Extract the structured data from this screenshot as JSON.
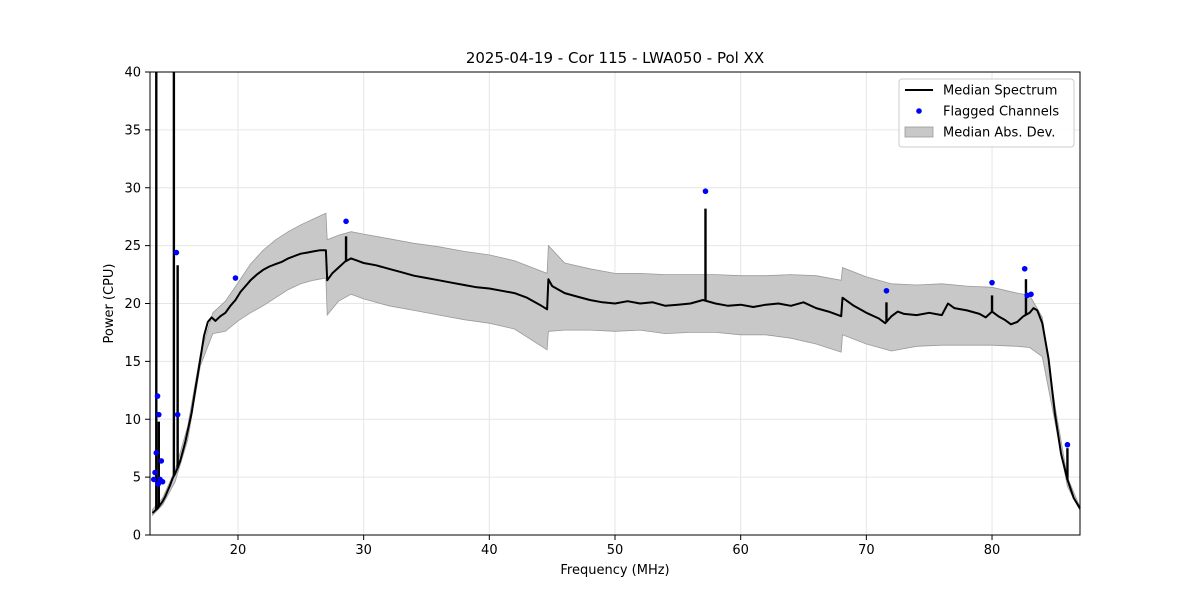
{
  "chart_data": {
    "type": "line",
    "title": "2025-04-19 - Cor 115 - LWA050 - Pol XX",
    "xlabel": "Frequency (MHz)",
    "ylabel": "Power (CPU)",
    "xlim": [
      13.0,
      87.0
    ],
    "ylim": [
      0,
      40
    ],
    "xticks": [
      20,
      30,
      40,
      50,
      60,
      70,
      80
    ],
    "yticks": [
      0,
      5,
      10,
      15,
      20,
      25,
      30,
      35,
      40
    ],
    "grid": true,
    "legend_position": "top-right",
    "colors": {
      "median": "#000000",
      "flagged": "#0000ff",
      "band_fill": "#c8c8c8",
      "band_edge": "#9a9a9a"
    },
    "legend": [
      {
        "label": "Median Spectrum",
        "kind": "line"
      },
      {
        "label": "Flagged Channels",
        "kind": "dot"
      },
      {
        "label": "Median Abs. Dev.",
        "kind": "patch"
      }
    ],
    "series": [
      {
        "name": "Median Spectrum",
        "x": [
          13.2,
          13.4,
          13.6,
          13.8,
          14.0,
          14.2,
          14.4,
          14.6,
          14.8,
          15.0,
          15.2,
          15.4,
          15.6,
          15.8,
          16.0,
          16.3,
          16.6,
          17.0,
          17.3,
          17.6,
          17.9,
          18.2,
          18.6,
          19.0,
          19.4,
          19.8,
          20.2,
          20.6,
          21.0,
          21.5,
          22.0,
          22.5,
          23.0,
          23.5,
          24.0,
          24.5,
          25.0,
          25.5,
          26.0,
          26.5,
          27.0,
          27.1,
          27.5,
          28.0,
          28.5,
          29.0,
          29.5,
          30.0,
          31.0,
          32.0,
          33.0,
          34.0,
          35.0,
          36.0,
          37.0,
          38.0,
          39.0,
          40.0,
          41.0,
          42.0,
          43.0,
          44.0,
          44.6,
          44.7,
          45.0,
          46.0,
          47.0,
          48.0,
          49.0,
          50.0,
          51.0,
          52.0,
          53.0,
          54.0,
          55.0,
          56.0,
          57.0,
          58.0,
          59.0,
          60.0,
          61.0,
          62.0,
          63.0,
          64.0,
          65.0,
          66.0,
          67.0,
          68.0,
          68.1,
          69.0,
          70.0,
          71.0,
          71.5,
          72.0,
          72.5,
          73.0,
          74.0,
          75.0,
          76.0,
          76.5,
          77.0,
          78.0,
          79.0,
          79.5,
          80.0,
          80.5,
          81.0,
          81.5,
          82.0,
          82.5,
          83.0,
          83.3,
          83.6,
          84.0,
          84.5,
          85.0,
          85.5,
          86.0,
          86.5,
          87.0
        ],
        "values": [
          1.9,
          2.1,
          2.3,
          2.6,
          2.9,
          3.3,
          3.8,
          4.3,
          4.9,
          5.3,
          5.8,
          6.4,
          7.2,
          8.0,
          9.0,
          10.5,
          12.5,
          15.2,
          17.2,
          18.4,
          18.8,
          18.5,
          18.9,
          19.2,
          19.8,
          20.3,
          21.0,
          21.5,
          22.0,
          22.5,
          22.9,
          23.2,
          23.4,
          23.6,
          23.9,
          24.1,
          24.3,
          24.4,
          24.5,
          24.6,
          24.6,
          22.0,
          22.6,
          23.1,
          23.6,
          23.9,
          23.7,
          23.5,
          23.3,
          23.0,
          22.7,
          22.4,
          22.2,
          22.0,
          21.8,
          21.6,
          21.4,
          21.3,
          21.1,
          20.9,
          20.5,
          19.9,
          19.5,
          22.1,
          21.5,
          20.9,
          20.6,
          20.3,
          20.1,
          20.0,
          20.2,
          20.0,
          20.1,
          19.8,
          19.9,
          20.0,
          20.3,
          20.0,
          19.8,
          19.9,
          19.7,
          19.9,
          20.0,
          19.8,
          20.1,
          19.6,
          19.3,
          18.9,
          20.5,
          19.8,
          19.2,
          18.7,
          18.3,
          18.9,
          19.3,
          19.1,
          19.0,
          19.2,
          19.0,
          20.0,
          19.6,
          19.4,
          19.1,
          18.8,
          19.3,
          18.9,
          18.6,
          18.2,
          18.4,
          18.9,
          19.2,
          19.6,
          19.4,
          18.3,
          15.2,
          10.5,
          7.0,
          4.8,
          3.2,
          2.3
        ],
        "spikes": [
          {
            "x": 13.5,
            "value": 40.0
          },
          {
            "x": 13.7,
            "value": 9.8
          },
          {
            "x": 14.9,
            "value": 40.0
          },
          {
            "x": 15.2,
            "value": 23.3
          },
          {
            "x": 28.6,
            "value": 25.8
          },
          {
            "x": 57.2,
            "value": 28.2
          },
          {
            "x": 71.6,
            "value": 20.1
          },
          {
            "x": 80.0,
            "value": 20.7
          },
          {
            "x": 82.7,
            "value": 22.1
          },
          {
            "x": 86.0,
            "value": 7.5
          }
        ]
      },
      {
        "name": "Median Abs. Dev.",
        "x": [
          13.2,
          14.0,
          15.0,
          16.0,
          17.0,
          18.0,
          19.0,
          20.0,
          21.0,
          22.0,
          23.0,
          24.0,
          25.0,
          26.0,
          27.0,
          27.1,
          28.0,
          29.0,
          30.0,
          32.0,
          34.0,
          36.0,
          38.0,
          40.0,
          42.0,
          44.6,
          44.7,
          46.0,
          48.0,
          50.0,
          52.0,
          54.0,
          56.0,
          58.0,
          60.0,
          62.0,
          64.0,
          66.0,
          68.0,
          68.1,
          70.0,
          72.0,
          74.0,
          76.0,
          78.0,
          80.0,
          82.0,
          83.0,
          84.0,
          85.0,
          86.0,
          87.0
        ],
        "upper": [
          2.2,
          3.2,
          5.6,
          9.4,
          15.6,
          19.2,
          20.2,
          21.8,
          23.4,
          24.6,
          25.5,
          26.2,
          26.8,
          27.3,
          27.8,
          25.5,
          25.9,
          26.2,
          26.0,
          25.6,
          25.2,
          24.9,
          24.5,
          24.2,
          23.7,
          22.6,
          25.0,
          23.5,
          23.0,
          22.6,
          22.6,
          22.5,
          22.5,
          22.5,
          22.4,
          22.4,
          22.5,
          22.4,
          22.0,
          23.1,
          22.3,
          21.7,
          21.6,
          21.7,
          21.5,
          21.4,
          20.9,
          20.7,
          18.8,
          11.2,
          5.0,
          2.4
        ],
        "lower": [
          1.7,
          2.6,
          4.6,
          8.2,
          14.6,
          17.4,
          17.6,
          18.5,
          19.2,
          19.8,
          20.5,
          21.2,
          21.7,
          22.0,
          22.2,
          19.0,
          20.2,
          20.8,
          20.4,
          19.8,
          19.4,
          19.0,
          18.6,
          18.3,
          17.8,
          16.0,
          17.6,
          17.7,
          17.7,
          17.6,
          17.7,
          17.4,
          17.5,
          17.5,
          17.3,
          17.3,
          17.0,
          16.5,
          15.8,
          17.3,
          16.5,
          15.9,
          16.3,
          16.4,
          16.4,
          16.4,
          16.3,
          16.2,
          15.4,
          9.8,
          4.2,
          2.1
        ]
      },
      {
        "name": "Flagged Channels",
        "x": [
          13.3,
          13.4,
          13.5,
          13.6,
          13.65,
          13.7,
          13.8,
          13.9,
          14.0,
          15.1,
          15.2,
          19.8,
          28.6,
          57.2,
          71.6,
          80.0,
          82.6,
          82.8,
          83.1,
          86.0
        ],
        "values": [
          4.8,
          5.4,
          7.1,
          12.0,
          4.4,
          10.4,
          4.8,
          6.4,
          4.6,
          24.4,
          10.4,
          22.2,
          27.1,
          29.7,
          21.1,
          21.8,
          23.0,
          20.7,
          20.8,
          7.8
        ]
      }
    ]
  }
}
